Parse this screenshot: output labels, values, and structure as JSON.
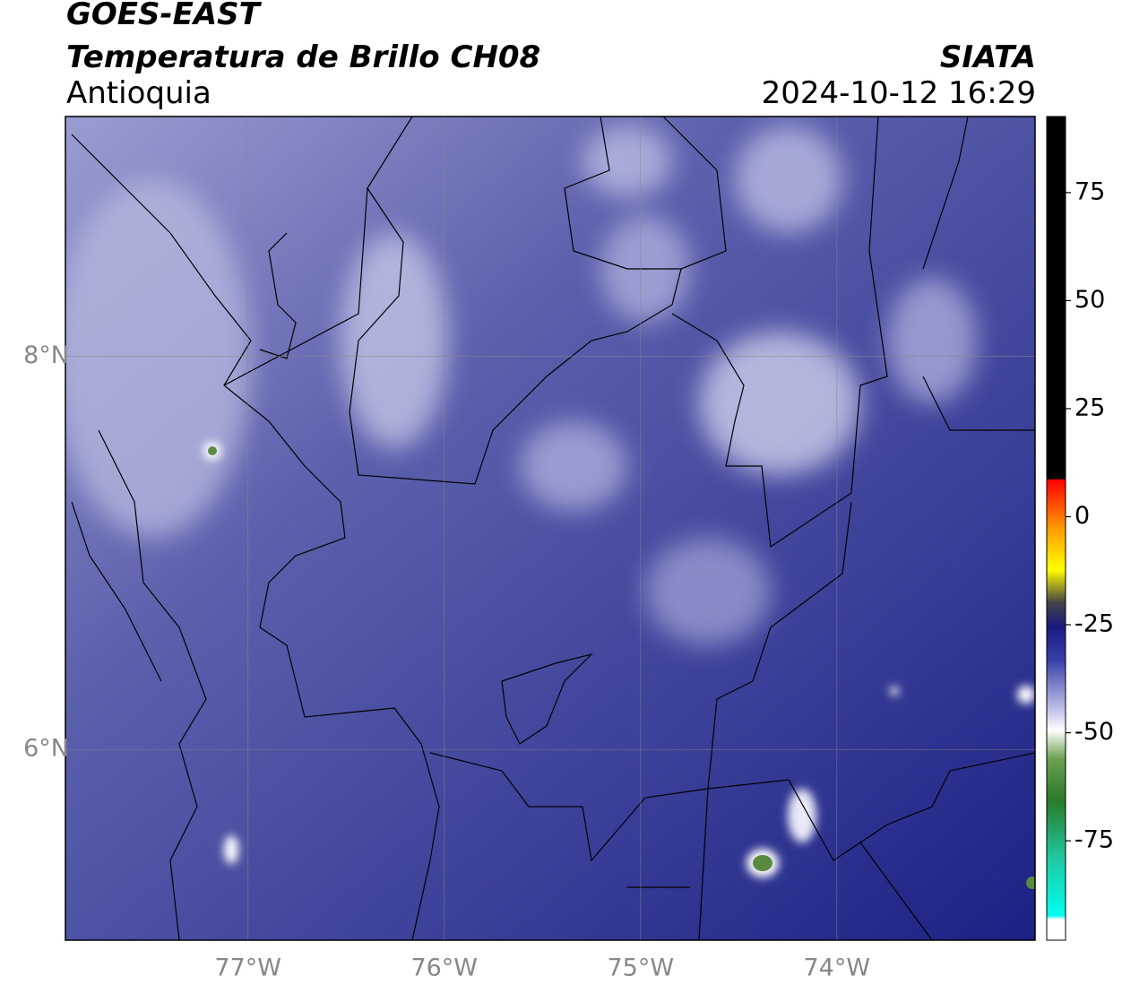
{
  "header": {
    "satellite": "GOES-EAST",
    "product": "Temperatura de Brillo CH08",
    "region": "Antioquia",
    "source": "SIATA",
    "datetime": "2024-10-12 16:29"
  },
  "map": {
    "xlim": [
      -77.93,
      -72.99
    ],
    "ylim": [
      5.03,
      9.22
    ],
    "xticks": [
      {
        "value": -77,
        "label": "77°W"
      },
      {
        "value": -76,
        "label": "76°W"
      },
      {
        "value": -75,
        "label": "75°W"
      },
      {
        "value": -74,
        "label": "74°W"
      }
    ],
    "yticks": [
      {
        "value": 8,
        "label": "8°N"
      },
      {
        "value": 6,
        "label": "6°N"
      }
    ],
    "grid": true
  },
  "colorbar": {
    "lim": [
      -98,
      92.6
    ],
    "ticks": [
      75,
      50,
      25,
      0,
      -25,
      -50,
      -75
    ]
  }
}
